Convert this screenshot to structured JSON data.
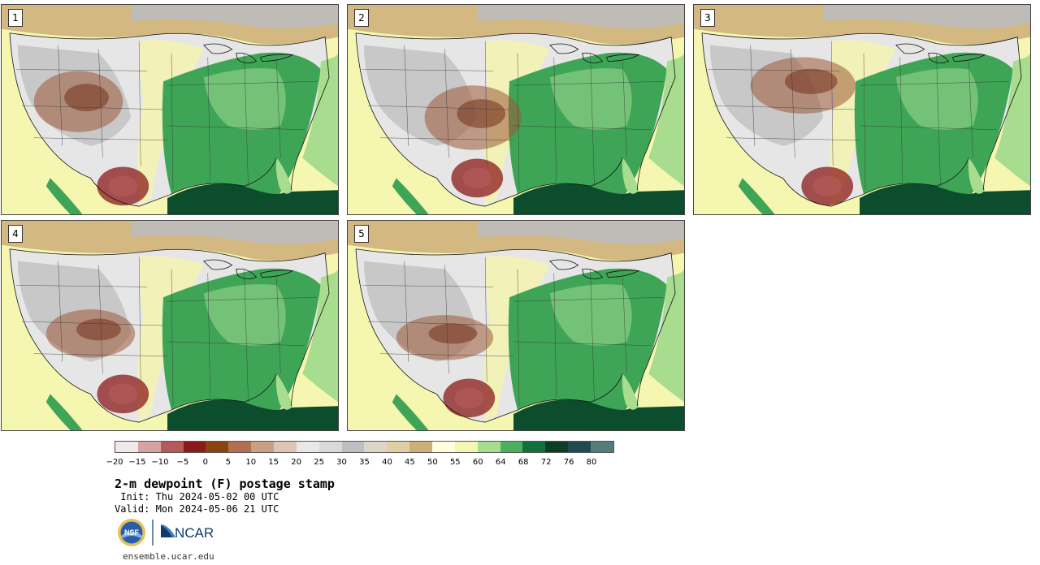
{
  "title": "2-m dewpoint (F) postage stamp",
  "init": " Init: Thu 2024-05-02 00 UTC",
  "valid": "Valid: Mon 2024-05-06 21 UTC",
  "url": "ensemble.ucar.edu",
  "logos": {
    "nsf_text": "NSF",
    "ncar_text": "NCAR"
  },
  "stamps": [
    {
      "label": "1"
    },
    {
      "label": "2"
    },
    {
      "label": "3"
    },
    {
      "label": "4"
    },
    {
      "label": "5"
    }
  ],
  "colorbar": {
    "unit": "F",
    "ticks": [
      "−20",
      "−15",
      "−10",
      "−5",
      "0",
      "5",
      "10",
      "15",
      "20",
      "25",
      "30",
      "35",
      "40",
      "45",
      "50",
      "55",
      "60",
      "64",
      "68",
      "72",
      "76",
      "80"
    ],
    "colors": [
      "#f3e8e8",
      "#d4a3a3",
      "#b35a5a",
      "#8b1a1a",
      "#8b4513",
      "#b07050",
      "#c9a085",
      "#dfc5b5",
      "#e8e8e8",
      "#d9d9d9",
      "#bfbfbf",
      "#ddd5c8",
      "#e0cfa5",
      "#cdb076",
      "#ffffe0",
      "#f5f7b0",
      "#a8dc8e",
      "#4caf5f",
      "#13703c",
      "#0b3e24",
      "#1f4b50",
      "#557b7b"
    ]
  },
  "colors": {
    "ocean_warm": "#0b4d2c",
    "ocean_cool": "#f5f7b0",
    "plains_green": "#3fa556",
    "dry_brown": "#9c5a3a",
    "canada_tan": "#d4b882",
    "gray_terrain": "#bdbdbd"
  }
}
